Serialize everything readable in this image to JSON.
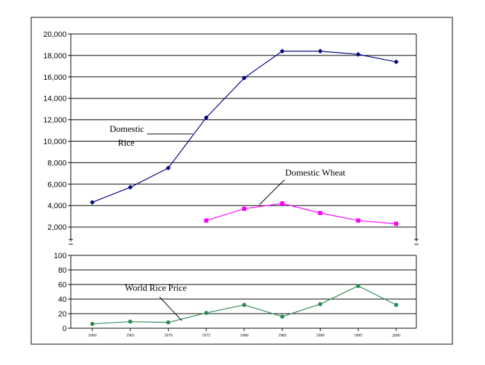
{
  "chart_data": [
    {
      "type": "line",
      "title": "",
      "xlabel": "",
      "ylabel": "",
      "x": [
        1960,
        1965,
        1970,
        1975,
        1980,
        1985,
        1990,
        1995,
        2000
      ],
      "ylim": [
        0,
        20000
      ],
      "yticks": [
        "0",
        "2,000",
        "4,000",
        "6,000",
        "8,000",
        "10,000",
        "12,000",
        "14,000",
        "16,000",
        "18,000",
        "20,000"
      ],
      "grid": true,
      "series": [
        {
          "name": "Domestic Rice",
          "color": "#000080",
          "marker": "diamond",
          "values": [
            4300,
            5700,
            7500,
            12200,
            15900,
            18400,
            18400,
            18100,
            17400
          ]
        },
        {
          "name": "Domestic Wheat",
          "color": "#ff00ff",
          "marker": "square",
          "values": [
            null,
            null,
            null,
            2600,
            3700,
            4200,
            3300,
            2600,
            2300
          ]
        }
      ],
      "annotations": [
        {
          "text_lines": [
            "Domestic",
            "Rice"
          ],
          "target_series": "Domestic Rice"
        },
        {
          "text_lines": [
            "Domestic Wheat"
          ],
          "target_series": "Domestic Wheat"
        }
      ]
    },
    {
      "type": "line",
      "title": "",
      "xlabel": "",
      "ylabel": "",
      "x": [
        1960,
        1965,
        1970,
        1975,
        1980,
        1985,
        1990,
        1995,
        2000
      ],
      "xticks": [
        "1960",
        "1965",
        "1970",
        "1975",
        "1980",
        "1985",
        "1990",
        "1995",
        "2000"
      ],
      "ylim": [
        0,
        100
      ],
      "yticks": [
        "0",
        "20",
        "40",
        "60",
        "80",
        "100"
      ],
      "grid": true,
      "series": [
        {
          "name": "World Rice Price",
          "color": "#2e8b57",
          "marker": "circle",
          "values": [
            6,
            9,
            8,
            21,
            32,
            16,
            33,
            58,
            32
          ]
        }
      ],
      "annotations": [
        {
          "text_lines": [
            "World Rice Price"
          ],
          "target_series": "World Rice Price"
        }
      ]
    }
  ]
}
